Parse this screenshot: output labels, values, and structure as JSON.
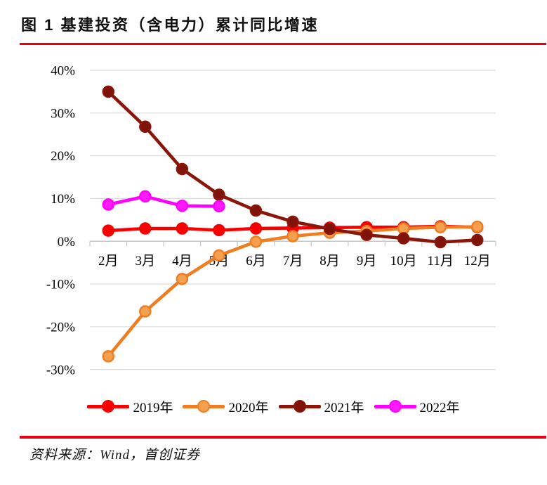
{
  "figure": {
    "title": "图 1 基建投资（含电力）累计同比增速",
    "source": "资料来源：Wind，首创证券"
  },
  "colors": {
    "rule_red": "#E60012",
    "grid": "#DCDCDC",
    "axis": "#C6C6C6",
    "text": "#000000"
  },
  "chart_data": {
    "type": "line",
    "title": "基建投资（含电力）累计同比增速",
    "xlabel": "",
    "ylabel": "",
    "grid": true,
    "legend_position": "bottom",
    "ytick_suffix": "%",
    "yticks": [
      40,
      30,
      20,
      10,
      0,
      -10,
      -20,
      -30
    ],
    "ylim": [
      -33,
      43
    ],
    "categories": [
      "2月",
      "3月",
      "4月",
      "5月",
      "6月",
      "7月",
      "8月",
      "9月",
      "10月",
      "11月",
      "12月"
    ],
    "series": [
      {
        "name": "2019年",
        "color": "#F70000",
        "marker_fill": "#F70000",
        "values": [
          2.5,
          3.0,
          3.0,
          2.6,
          3.0,
          3.1,
          3.2,
          3.3,
          3.3,
          3.5,
          3.3
        ]
      },
      {
        "name": "2020年",
        "color": "#EF7D21",
        "marker_fill": "#F3A04F",
        "values": [
          -26.9,
          -16.4,
          -8.8,
          -3.3,
          -0.1,
          1.2,
          2.0,
          2.4,
          3.0,
          3.3,
          3.4
        ]
      },
      {
        "name": "2021年",
        "color": "#8B1508",
        "marker_fill": "#7E130A",
        "values": [
          35.0,
          26.8,
          16.9,
          10.9,
          7.2,
          4.6,
          2.9,
          1.5,
          0.7,
          -0.2,
          0.3
        ]
      },
      {
        "name": "2022年",
        "color": "#FF00FF",
        "marker_fill": "#FF1AFF",
        "values": [
          8.6,
          10.5,
          8.3,
          8.2
        ]
      }
    ]
  }
}
